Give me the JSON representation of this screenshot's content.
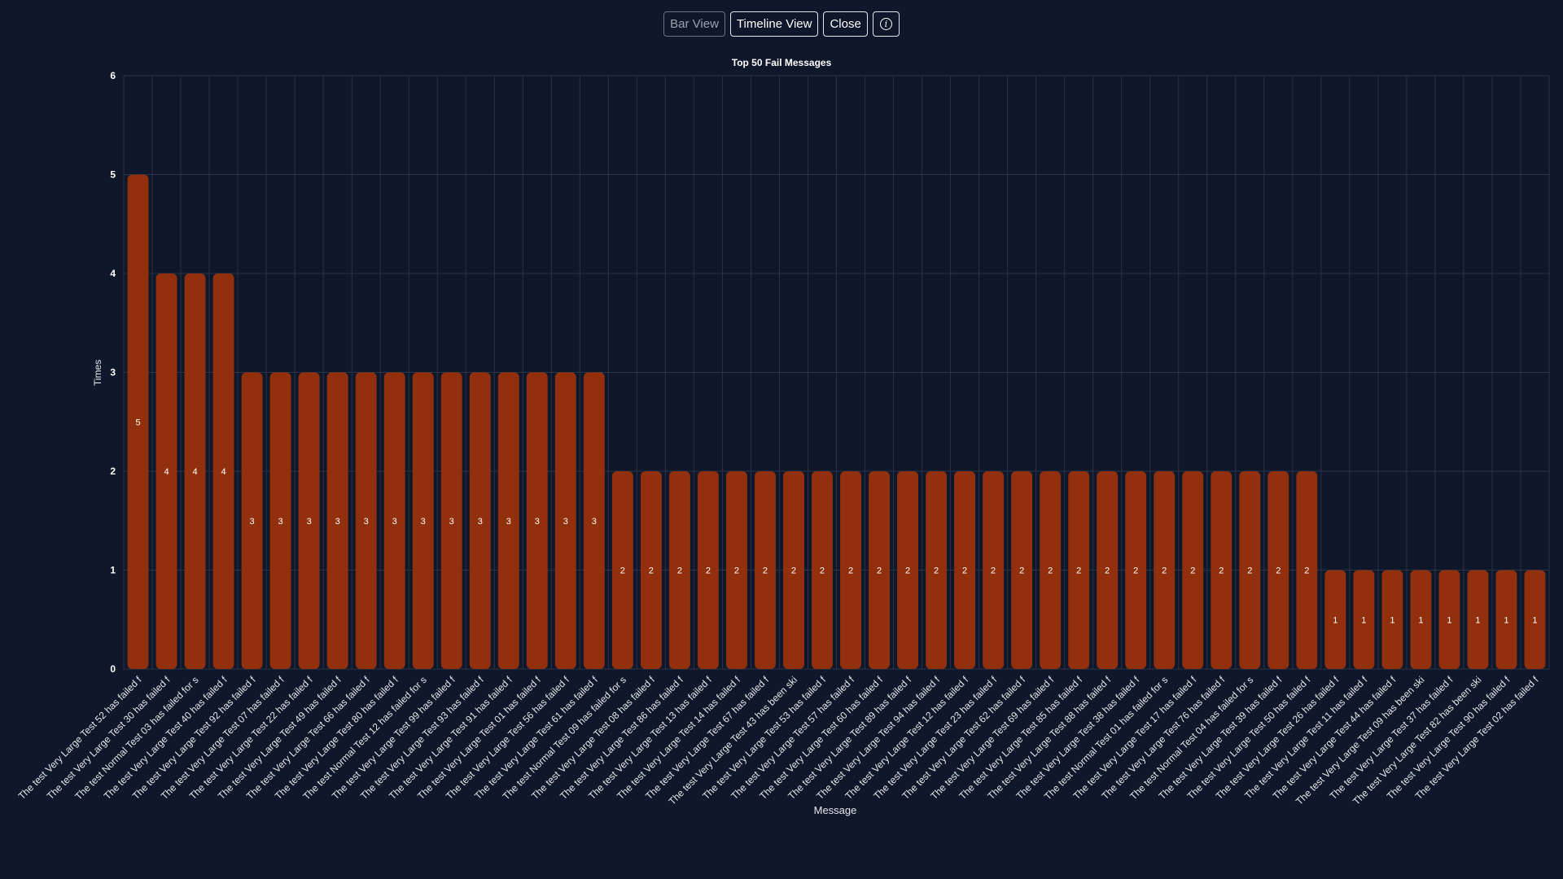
{
  "toolbar": {
    "bar_view_label": "Bar View",
    "timeline_view_label": "Timeline View",
    "close_label": "Close",
    "info_icon": "info-icon",
    "info_glyph": "i"
  },
  "colors": {
    "background": "#0f172a",
    "bar": "#92300e",
    "grid": "#2a3446",
    "text": "#e5e7eb"
  },
  "chart_data": {
    "type": "bar",
    "title": "Top 50 Fail Messages",
    "xlabel": "Message",
    "ylabel": "Times",
    "ylim": [
      0,
      6
    ],
    "yticks": [
      0,
      1,
      2,
      3,
      4,
      5,
      6
    ],
    "grid": true,
    "data_labels": true,
    "categories": [
      "The test Very Large Test 52 has failed f",
      "The test Very Large Test 30 has failed f",
      "The test Normal Test 03 has failed for s",
      "The test Very Large Test 40 has failed f",
      "The test Very Large Test 92 has failed f",
      "The test Very Large Test 07 has failed f",
      "The test Very Large Test 22 has failed f",
      "The test Very Large Test 49 has failed f",
      "The test Very Large Test 66 has failed f",
      "The test Very Large Test 80 has failed f",
      "The test Normal Test 12 has failed for s",
      "The test Very Large Test 99 has failed f",
      "The test Very Large Test 93 has failed f",
      "The test Very Large Test 91 has failed f",
      "The test Very Large Test 01 has failed f",
      "The test Very Large Test 56 has failed f",
      "The test Very Large Test 61 has failed f",
      "The test Normal Test 09 has failed for s",
      "The test Very Large Test 08 has failed f",
      "The test Very Large Test 86 has failed f",
      "The test Very Large Test 13 has failed f",
      "The test Very Large Test 14 has failed f",
      "The test Very Large Test 67 has failed f",
      "The test Very Large Test 43 has been ski",
      "The test Very Large Test 53 has failed f",
      "The test Very Large Test 57 has failed f",
      "The test Very Large Test 60 has failed f",
      "The test Very Large Test 89 has failed f",
      "The test Very Large Test 94 has failed f",
      "The test Very Large Test 12 has failed f",
      "The test Very Large Test 23 has failed f",
      "The test Very Large Test 62 has failed f",
      "The test Very Large Test 69 has failed f",
      "The test Very Large Test 85 has failed f",
      "The test Very Large Test 88 has failed f",
      "The test Very Large Test 38 has failed f",
      "The test Normal Test 01 has failed for s",
      "The test Very Large Test 17 has failed f",
      "The test Very Large Test 76 has failed f",
      "The test Normal Test 04 has failed for s",
      "The test Very Large Test 39 has failed f",
      "The test Very Large Test 50 has failed f",
      "The test Very Large Test 26 has failed f",
      "The test Very Large Test 11 has failed f",
      "The test Very Large Test 44 has failed f",
      "The test Very Large Test 09 has been ski",
      "The test Very Large Test 37 has failed f",
      "The test Very Large Test 82 has been ski",
      "The test Very Large Test 90 has failed f",
      "The test Very Large Test 02 has failed f"
    ],
    "values": [
      5,
      4,
      4,
      4,
      3,
      3,
      3,
      3,
      3,
      3,
      3,
      3,
      3,
      3,
      3,
      3,
      3,
      2,
      2,
      2,
      2,
      2,
      2,
      2,
      2,
      2,
      2,
      2,
      2,
      2,
      2,
      2,
      2,
      2,
      2,
      2,
      2,
      2,
      2,
      2,
      2,
      2,
      1,
      1,
      1,
      1,
      1,
      1,
      1,
      1
    ]
  }
}
